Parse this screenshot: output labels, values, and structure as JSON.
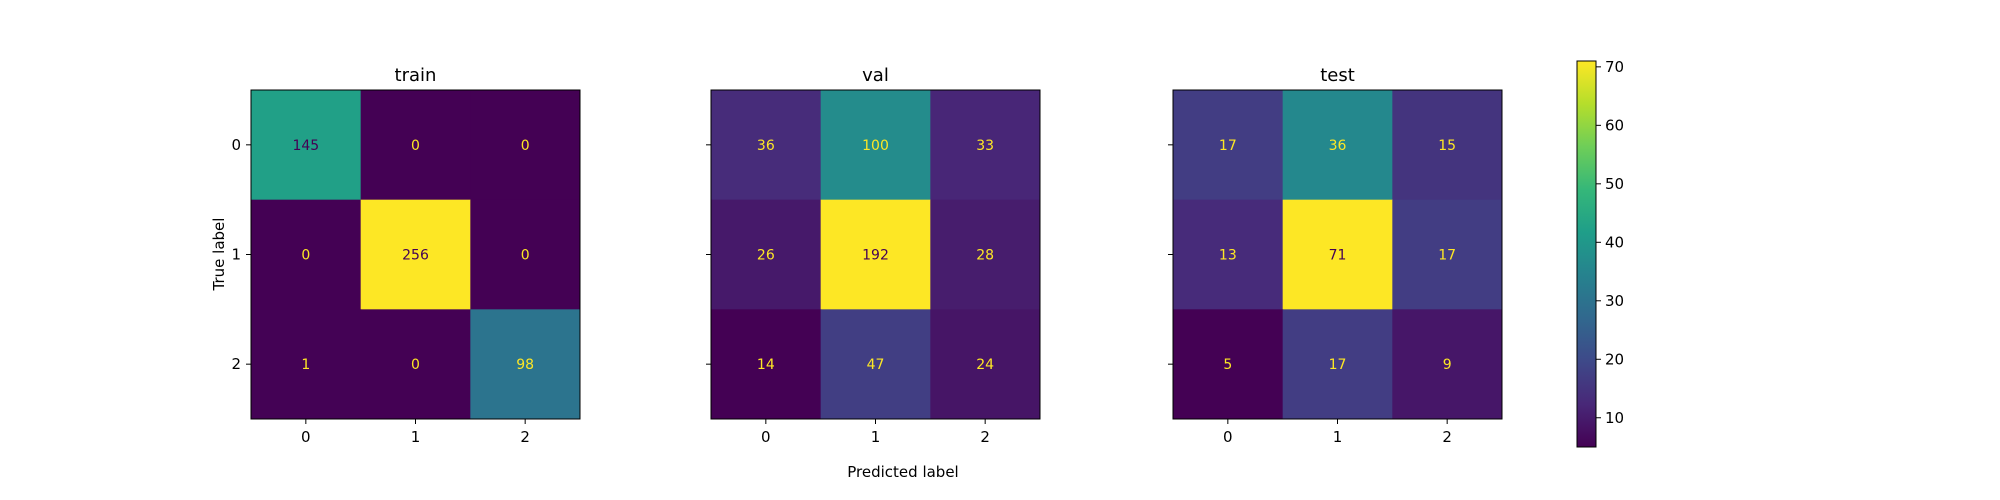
{
  "figure": {
    "xlabel": "Predicted label",
    "ylabel": "True label"
  },
  "chart_data": [
    {
      "type": "heatmap",
      "title": "train",
      "x_tick_labels": [
        "0",
        "1",
        "2"
      ],
      "y_tick_labels": [
        "0",
        "1",
        "2"
      ],
      "matrix": [
        [
          145,
          0,
          0
        ],
        [
          0,
          256,
          0
        ],
        [
          1,
          0,
          98
        ]
      ],
      "show_y_tick_labels": true,
      "color_range": [
        0,
        256
      ]
    },
    {
      "type": "heatmap",
      "title": "val",
      "x_tick_labels": [
        "0",
        "1",
        "2"
      ],
      "y_tick_labels": [
        "0",
        "1",
        "2"
      ],
      "matrix": [
        [
          36,
          100,
          33
        ],
        [
          26,
          192,
          28
        ],
        [
          14,
          47,
          24
        ]
      ],
      "show_y_tick_labels": false,
      "color_range": [
        14,
        192
      ]
    },
    {
      "type": "heatmap",
      "title": "test",
      "x_tick_labels": [
        "0",
        "1",
        "2"
      ],
      "y_tick_labels": [
        "0",
        "1",
        "2"
      ],
      "matrix": [
        [
          17,
          36,
          15
        ],
        [
          13,
          71,
          17
        ],
        [
          5,
          17,
          9
        ]
      ],
      "show_y_tick_labels": false,
      "color_range": [
        5,
        71
      ]
    }
  ],
  "colorbar": {
    "colormap": "viridis",
    "range": [
      5,
      71
    ],
    "ticks": [
      10,
      20,
      30,
      40,
      50,
      60,
      70
    ]
  }
}
